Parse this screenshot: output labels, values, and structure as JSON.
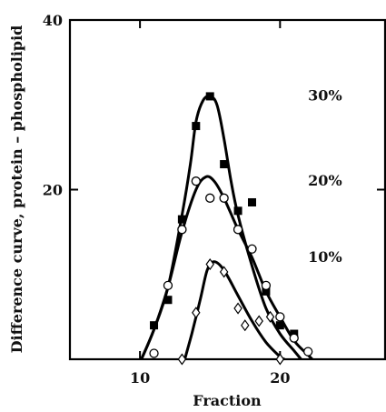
{
  "chart_data": {
    "type": "scatter",
    "title": "",
    "xlabel": "Fraction",
    "ylabel": "Difference curve, protein – phospholipid",
    "xlim": [
      5,
      27.5
    ],
    "ylim": [
      0,
      40
    ],
    "x_ticks": [
      10,
      20
    ],
    "y_ticks": [
      20,
      40
    ],
    "grid": false,
    "series": [
      {
        "name": "30%",
        "marker": "filled-square",
        "points": [
          [
            11,
            4
          ],
          [
            12,
            7
          ],
          [
            13,
            16.5
          ],
          [
            14,
            27.5
          ],
          [
            15,
            31
          ],
          [
            16,
            23
          ],
          [
            17,
            17.5
          ],
          [
            18,
            18.5
          ],
          [
            19,
            8
          ],
          [
            20,
            4
          ],
          [
            21,
            3
          ]
        ],
        "curve": [
          [
            10.1,
            0
          ],
          [
            11,
            3.5
          ],
          [
            12,
            8.5
          ],
          [
            13,
            17
          ],
          [
            13.6,
            23
          ],
          [
            14,
            28
          ],
          [
            14.5,
            30.5
          ],
          [
            15,
            31
          ],
          [
            15.5,
            30
          ],
          [
            16,
            26
          ],
          [
            16.5,
            21
          ],
          [
            17,
            17
          ],
          [
            18,
            11
          ],
          [
            19,
            6
          ],
          [
            20,
            3
          ],
          [
            21,
            1
          ],
          [
            21.5,
            0
          ]
        ]
      },
      {
        "name": "20%",
        "marker": "open-circle",
        "points": [
          [
            11,
            0.7
          ],
          [
            12,
            8.7
          ],
          [
            13,
            15.3
          ],
          [
            14,
            21
          ],
          [
            15,
            19
          ],
          [
            16,
            19
          ],
          [
            17,
            15.3
          ],
          [
            18,
            13
          ],
          [
            19,
            8.7
          ],
          [
            20,
            5
          ],
          [
            21,
            2.5
          ],
          [
            22,
            0.9
          ]
        ],
        "curve": [
          [
            10.1,
            0
          ],
          [
            11,
            3.5
          ],
          [
            12,
            8.5
          ],
          [
            13,
            15
          ],
          [
            14,
            20
          ],
          [
            14.7,
            21.5
          ],
          [
            15.3,
            21
          ],
          [
            16,
            19
          ],
          [
            17,
            15.3
          ],
          [
            18,
            12
          ],
          [
            19,
            8
          ],
          [
            20,
            5
          ],
          [
            21,
            2.2
          ],
          [
            22,
            0.5
          ],
          [
            22.3,
            0
          ]
        ]
      },
      {
        "name": "10%",
        "marker": "open-diamond",
        "points": [
          [
            13,
            0
          ],
          [
            14,
            5.5
          ],
          [
            15,
            11.2
          ],
          [
            16,
            10.3
          ],
          [
            17,
            6
          ],
          [
            17.5,
            4
          ],
          [
            18.5,
            4.5
          ],
          [
            19.3,
            5
          ],
          [
            20,
            0
          ]
        ],
        "curve": [
          [
            13.2,
            0
          ],
          [
            13.7,
            3
          ],
          [
            14.3,
            7
          ],
          [
            14.8,
            10.5
          ],
          [
            15.3,
            11.5
          ],
          [
            16,
            10.5
          ],
          [
            17,
            7.5
          ],
          [
            18,
            4.5
          ],
          [
            19,
            2
          ],
          [
            20,
            0.3
          ],
          [
            20.3,
            0
          ]
        ]
      }
    ],
    "annotations": [
      {
        "text": "30%",
        "x": 22,
        "y": 30.5
      },
      {
        "text": "20%",
        "x": 22,
        "y": 20.5
      },
      {
        "text": "10%",
        "x": 22,
        "y": 11.5
      }
    ]
  }
}
